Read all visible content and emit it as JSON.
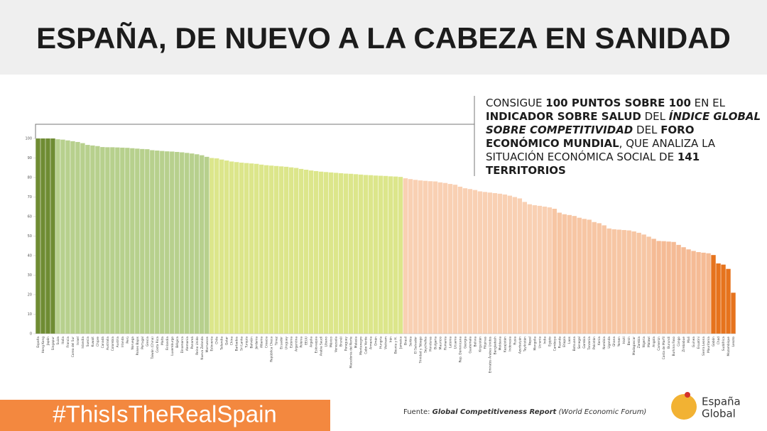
{
  "header": {
    "title": "ESPAÑA, DE NUEVO A LA CABEZA EN SANIDAD"
  },
  "chart_data": {
    "type": "bar",
    "categories": [
      "España",
      "Hong Kong",
      "Japón",
      "Singapur",
      "Suiza",
      "Italia",
      "Francia",
      "Corea del Sur",
      "Israel",
      "Islandia",
      "Suecia",
      "Kuwait",
      "Chipre",
      "Canadá",
      "Australia",
      "Colombia",
      "Austria",
      "Irlanda",
      "Perú",
      "Noruega",
      "Países Bajos",
      "Portugal",
      "Grecia",
      "Taiwán (China)",
      "Costa Rica",
      "Malta",
      "Finlandia",
      "Luxemburgo",
      "Bélgica",
      "Dinamarca",
      "Alemania",
      "Panamá",
      "Reino Unido",
      "Nueva Zelanda",
      "Marruecos",
      "Eslovenia",
      "Chile",
      "Tailandia",
      "Qatar",
      "China",
      "Barbados",
      "Sri Lanka",
      "Turquía",
      "Bahréin",
      "Jordania",
      "Albania",
      "Croacia",
      "República Checa",
      "Túnez",
      "Ecuador",
      "Uruguay",
      "Estonia",
      "Argentina",
      "Polonia",
      "EEUU",
      "Argelia",
      "Eslovaquia",
      "Arabia Saudí",
      "Líbano",
      "México",
      "Venezuela",
      "Brunéi",
      "Paraguay",
      "Macedonia del Norte",
      "Malasia",
      "Montenegro",
      "Cabo Verde",
      "Armenia",
      "Omán",
      "Hungría",
      "Vietnam",
      "Irán",
      "Bosnia y H.",
      "Jamaica",
      "Brasil",
      "Serbia",
      "El Salvador",
      "Trinidad y Tobago",
      "Seychelles",
      "Honduras",
      "Bulgaria",
      "Mauricio",
      "Rumanía",
      "Letonia",
      "Lituania",
      "Rep. Dominicana",
      "Georgia",
      "Guatemala",
      "Bolivia",
      "Kirguistán",
      "Filipinas",
      "Emiratos Árabes Unidos",
      "Bangladesh",
      "Moldavia",
      "Kazajistán",
      "Indonesia",
      "Rusia",
      "Azerbaiyán",
      "Tayikistán",
      "Nepal",
      "Mongolia",
      "Ucrania",
      "India",
      "Egipto",
      "Camboya",
      "Ruanda",
      "Etiopía",
      "Laos",
      "Botsuana",
      "Senegal",
      "Gambia",
      "Tanzania",
      "Pakistán",
      "Kenia",
      "Namibia",
      "Uganda",
      "Ghana",
      "Yemen",
      "Haití",
      "Benín",
      "Madagascar",
      "Zambia",
      "Nigeria",
      "Malawi",
      "Angola",
      "Camerún",
      "Costa de Marfil",
      "Burundi",
      "Burkina Faso",
      "Congo",
      "Zimbabue",
      "Mali",
      "Guinea",
      "Esuatini",
      "Sierra Leona",
      "Mauritania",
      "Gabón",
      "Chad",
      "Sudáfrica",
      "Mozambique",
      "Lesoto"
    ],
    "values": [
      100,
      100,
      100,
      100,
      99.6,
      99.4,
      99.0,
      98.6,
      98.2,
      97.6,
      96.7,
      96.4,
      96.1,
      95.6,
      95.5,
      95.5,
      95.4,
      95.3,
      95.2,
      95.0,
      94.8,
      94.6,
      94.5,
      94.0,
      93.8,
      93.6,
      93.4,
      93.3,
      93.1,
      92.9,
      92.6,
      92.3,
      91.9,
      91.4,
      90.6,
      90.0,
      89.8,
      89.2,
      88.7,
      88.2,
      87.9,
      87.6,
      87.4,
      87.2,
      87.0,
      86.6,
      86.3,
      86.1,
      85.9,
      85.7,
      85.5,
      85.2,
      84.9,
      84.4,
      84.0,
      83.6,
      83.3,
      83.0,
      82.8,
      82.6,
      82.4,
      82.2,
      82.0,
      81.9,
      81.7,
      81.5,
      81.3,
      81.2,
      81.0,
      80.9,
      80.8,
      80.6,
      80.5,
      80.3,
      79.6,
      79.2,
      78.8,
      78.5,
      78.3,
      78.1,
      78.0,
      77.5,
      77.2,
      76.7,
      76.3,
      75.3,
      74.5,
      74.1,
      73.6,
      72.9,
      72.6,
      72.3,
      72.0,
      71.7,
      71.3,
      70.7,
      70.0,
      69.3,
      67.5,
      66.3,
      65.8,
      65.5,
      65.1,
      64.7,
      64.0,
      62.0,
      61.2,
      60.8,
      60.3,
      59.4,
      58.8,
      58.4,
      57.2,
      56.6,
      55.5,
      53.9,
      53.5,
      53.3,
      53.1,
      52.9,
      52.4,
      51.7,
      50.8,
      49.7,
      48.6,
      47.5,
      47.4,
      47.2,
      47.0,
      45.5,
      44.3,
      43.2,
      42.4,
      41.8,
      41.5,
      41.2,
      40.3,
      36.0,
      35.4,
      33.2,
      21.0
    ],
    "colors": [
      "#6f8c33",
      "#6f8c33",
      "#6f8c33",
      "#6f8c33",
      "#b7d08d",
      "#b7d08d",
      "#b7d08d",
      "#b7d08d",
      "#b7d08d",
      "#b7d08d",
      "#b7d08d",
      "#b7d08d",
      "#b7d08d",
      "#b7d08d",
      "#b7d08d",
      "#b7d08d",
      "#b7d08d",
      "#b7d08d",
      "#b7d08d",
      "#b7d08d",
      "#b7d08d",
      "#b7d08d",
      "#b7d08d",
      "#b7d08d",
      "#b7d08d",
      "#b7d08d",
      "#b7d08d",
      "#b7d08d",
      "#b7d08d",
      "#b7d08d",
      "#b7d08d",
      "#b7d08d",
      "#b7d08d",
      "#b7d08d",
      "#b7d08d",
      "#dce68b",
      "#dce68b",
      "#dce68b",
      "#dce68b",
      "#dce68b",
      "#dce68b",
      "#dce68b",
      "#dce68b",
      "#dce68b",
      "#dce68b",
      "#dce68b",
      "#dce68b",
      "#dce68b",
      "#dce68b",
      "#dce68b",
      "#dce68b",
      "#dce68b",
      "#dce68b",
      "#dce68b",
      "#dce68b",
      "#dce68b",
      "#dce68b",
      "#dce68b",
      "#dce68b",
      "#dce68b",
      "#dce68b",
      "#dce68b",
      "#dce68b",
      "#dce68b",
      "#dce68b",
      "#dce68b",
      "#dce68b",
      "#dce68b",
      "#dce68b",
      "#dce68b",
      "#dce68b",
      "#dce68b",
      "#dce68b",
      "#dce68b",
      "#f9d0b3",
      "#f9d0b3",
      "#f9d0b3",
      "#f9d0b3",
      "#f9d0b3",
      "#f9d0b3",
      "#f9d0b3",
      "#f9d0b3",
      "#f9d0b3",
      "#f9d0b3",
      "#f9d0b3",
      "#f9d0b3",
      "#f9d0b3",
      "#f9d0b3",
      "#f9d0b3",
      "#f9d0b3",
      "#f9d0b3",
      "#f9d0b3",
      "#f9d0b3",
      "#f9d0b3",
      "#f9d0b3",
      "#f9d0b3",
      "#f9d0b3",
      "#f9d0b3",
      "#f9d0b3",
      "#f9d0b3",
      "#f9d0b3",
      "#f9d0b3",
      "#f9d0b3",
      "#f9d0b3",
      "#f7c6a4",
      "#f7c6a4",
      "#f7c6a4",
      "#f7c6a4",
      "#f7c6a4",
      "#f7c6a4",
      "#f7c6a4",
      "#f7c6a4",
      "#f7c6a4",
      "#f7c6a4",
      "#f7c6a4",
      "#f7c6a4",
      "#f7c6a4",
      "#f7c6a4",
      "#f7c6a4",
      "#f7c6a4",
      "#f7c6a4",
      "#f7c6a4",
      "#f7c6a4",
      "#f7c6a4",
      "#f5bb95",
      "#f5bb95",
      "#f5bb95",
      "#f5bb95",
      "#f5bb95",
      "#f5bb95",
      "#f5bb95",
      "#f5bb95",
      "#f5bb95",
      "#f5bb95",
      "#f5bb95",
      "#f5bb95",
      "#e6731d",
      "#e6731d",
      "#e6731d",
      "#e6731d",
      "#e6731d"
    ],
    "ylim": [
      0,
      100
    ],
    "yticks": [
      0,
      10,
      20,
      30,
      40,
      50,
      60,
      70,
      80,
      90,
      100
    ],
    "grid": false,
    "annotation": [
      [
        {
          "text": "CONSIGUE ",
          "style": "normal"
        },
        {
          "text": "100 PUNTOS SOBRE 100",
          "style": "bold"
        },
        {
          "text": " EN EL",
          "style": "normal"
        }
      ],
      [
        {
          "text": "INDICADOR SOBRE SALUD",
          "style": "bold"
        },
        {
          "text": " DEL ",
          "style": "normal"
        },
        {
          "text": "ÍNDICE GLOBAL",
          "style": "bold-italic"
        }
      ],
      [
        {
          "text": "SOBRE COMPETITIVIDAD",
          "style": "bold-italic"
        },
        {
          "text": " DEL ",
          "style": "normal"
        },
        {
          "text": "FORO",
          "style": "bold"
        }
      ],
      [
        {
          "text": "ECONÓMICO MUNDIAL",
          "style": "bold"
        },
        {
          "text": ", QUE ANALIZA LA",
          "style": "normal"
        }
      ],
      [
        {
          "text": "SITUACIÓN ECONÓMICA  SOCIAL DE ",
          "style": "normal"
        },
        {
          "text": "141",
          "style": "bold"
        }
      ],
      [
        {
          "text": "TERRITORIOS",
          "style": "bold"
        }
      ]
    ]
  },
  "footer": {
    "hashtag": "#ThisIsTheRealSpain",
    "source": [
      {
        "text": "Fuente: ",
        "style": "normal"
      },
      {
        "text": "Global Competitiveness Report",
        "style": "bold-italic"
      },
      {
        "text": " (World Economic Forum)",
        "style": "italic"
      }
    ],
    "logo": [
      "España",
      "Global"
    ]
  }
}
